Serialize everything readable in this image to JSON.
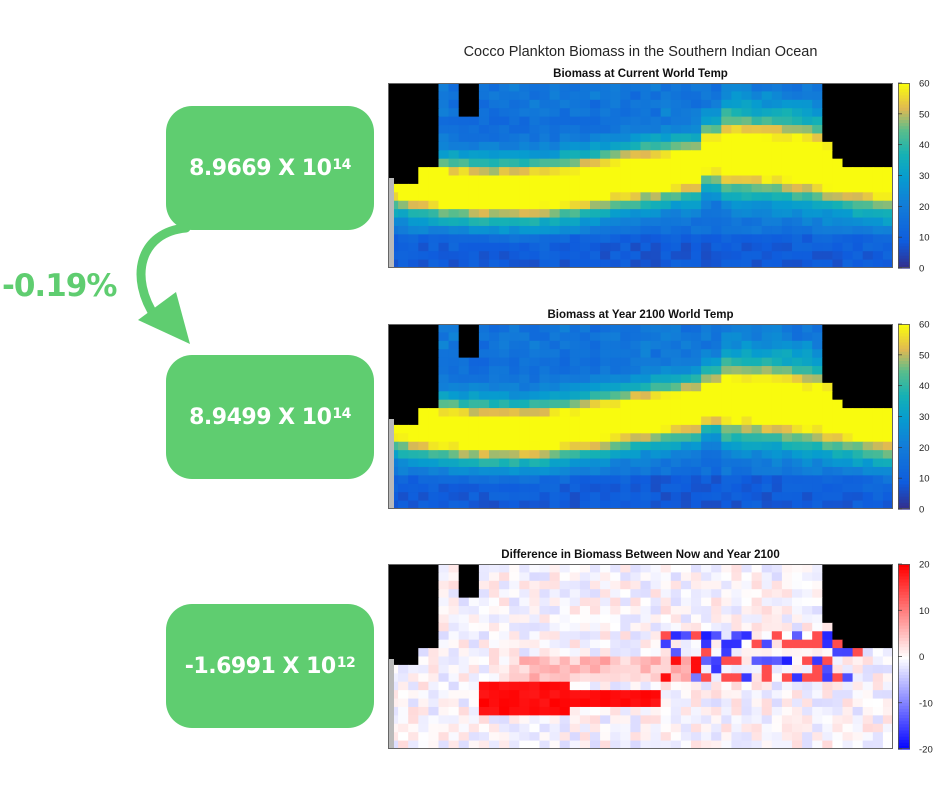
{
  "main_title": "Cocco Plankton Biomass in the Southern Indian Ocean",
  "summary": {
    "change_percent": "-0.19%",
    "boxes": [
      {
        "mantissa": "8.9669 X 10",
        "exponent": "14",
        "value": 896690000000000.0
      },
      {
        "mantissa": "8.9499 X 10",
        "exponent": "14",
        "value": 894990000000000.0
      },
      {
        "mantissa": "-1.6991 X 10",
        "exponent": "12",
        "value": -1699100000000.0
      }
    ],
    "accent_color": "#5fcd70"
  },
  "chart_data": [
    {
      "type": "heatmap",
      "title": "Biomass at Current World Temp",
      "colormap": "parula",
      "clim": [
        0,
        60
      ],
      "colorbar_ticks": [
        "60",
        "50",
        "40",
        "30",
        "20",
        "10",
        "0"
      ],
      "land_color": "#000000",
      "description_of_pattern": "high-biomass yellow band (~50-60) across mid latitudes, blue (~10) north and south"
    },
    {
      "type": "heatmap",
      "title": "Biomass at Year 2100 World Temp",
      "colormap": "parula",
      "clim": [
        0,
        60
      ],
      "colorbar_ticks": [
        "60",
        "50",
        "40",
        "30",
        "20",
        "10",
        "0"
      ],
      "land_color": "#000000"
    },
    {
      "type": "heatmap",
      "title": "Difference in Biomass Between Now and Year 2100",
      "colormap": "blue-white-red",
      "clim": [
        -20,
        20
      ],
      "colorbar_ticks": [
        "20",
        "10",
        "0",
        "-10",
        "-20"
      ],
      "land_color": "#000000"
    }
  ]
}
